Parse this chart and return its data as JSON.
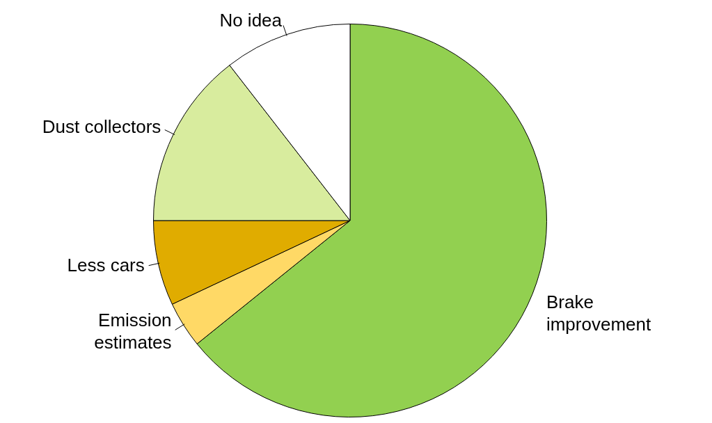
{
  "chart_data": {
    "type": "pie",
    "categories": [
      "Brake improvement",
      "Emission estimates",
      "Less cars",
      "Dust collectors",
      "No idea"
    ],
    "values": [
      64.2,
      3.8,
      7,
      14.5,
      10.5
    ],
    "colors": [
      "#92d050",
      "#ffd966",
      "#e0ac00",
      "#d8ec9e",
      "#ffffff"
    ],
    "legend": false
  }
}
